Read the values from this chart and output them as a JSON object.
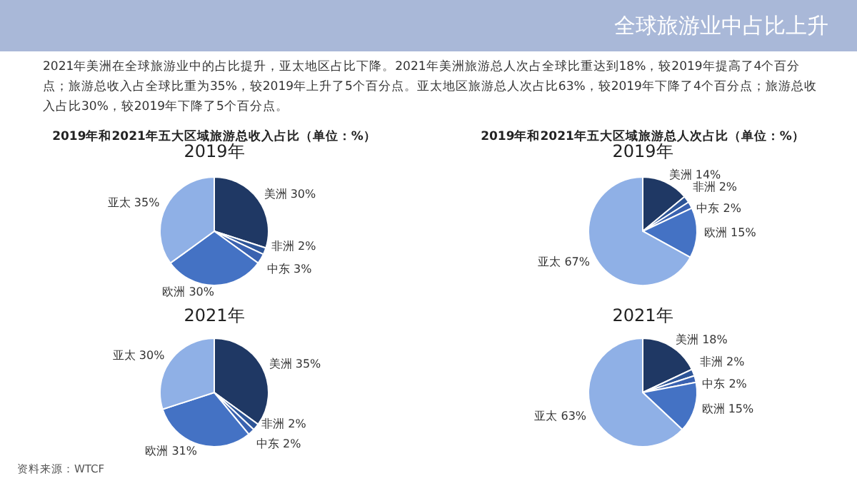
{
  "chart_data": [
    {
      "type": "pie",
      "title": "2019年",
      "subtitle": "2019年和2021年五大区域旅游总收入占比（单位：%）",
      "annotations": [
        "全球旅游业中占比上升",
        "2021年美洲在全球旅游业中的占比提升，亚太地区占比下降。2021年美洲旅游总人次占全球比重达到18%，较2019年提高了4个百分点；旅游总收入占全球比重为35%，较2019年上升了5个百分点。亚太地区旅游总人次占比63%，较2019年下降了4个百分点；旅游总收入占比30%，较2019年下降了5个百分点。"
      ],
      "categories": [
        "美洲",
        "非洲",
        "中东",
        "欧洲",
        "亚太"
      ],
      "values": [
        30,
        2,
        3,
        30,
        35
      ],
      "value_labels": [
        "30%",
        "2%",
        "3%",
        "30%",
        "35%"
      ],
      "colors": [
        "#1f3864",
        "#2e5597",
        "#3a62b0",
        "#4472c4",
        "#8fb0e6"
      ],
      "legend": false
    },
    {
      "type": "pie",
      "title": "2019年",
      "subtitle": "2019年和2021年五大区域旅游总人次占比（单位：%）",
      "categories": [
        "美洲",
        "非洲",
        "中东",
        "欧洲",
        "亚太"
      ],
      "values": [
        14,
        2,
        2,
        15,
        67
      ],
      "value_labels": [
        "14%",
        "2%",
        "2%",
        "15%",
        "67%"
      ],
      "colors": [
        "#1f3864",
        "#2e5597",
        "#3a62b0",
        "#4472c4",
        "#8fb0e6"
      ],
      "legend": false
    },
    {
      "type": "pie",
      "title": "2021年",
      "annotations": [
        "资料来源：WTCF"
      ],
      "categories": [
        "美洲",
        "非洲",
        "中东",
        "欧洲",
        "亚太"
      ],
      "values": [
        35,
        2,
        2,
        31,
        30
      ],
      "value_labels": [
        "35%",
        "2%",
        "2%",
        "31%",
        "30%"
      ],
      "colors": [
        "#1f3864",
        "#2e5597",
        "#3a62b0",
        "#4472c4",
        "#8fb0e6"
      ],
      "legend": false
    },
    {
      "type": "pie",
      "title": "2021年",
      "categories": [
        "美洲",
        "非洲",
        "中东",
        "欧洲",
        "亚太"
      ],
      "values": [
        18,
        2,
        2,
        15,
        63
      ],
      "value_labels": [
        "18%",
        "2%",
        "2%",
        "15%",
        "63%"
      ],
      "colors": [
        "#1f3864",
        "#2e5597",
        "#3a62b0",
        "#4472c4",
        "#8fb0e6"
      ],
      "legend": false
    }
  ]
}
